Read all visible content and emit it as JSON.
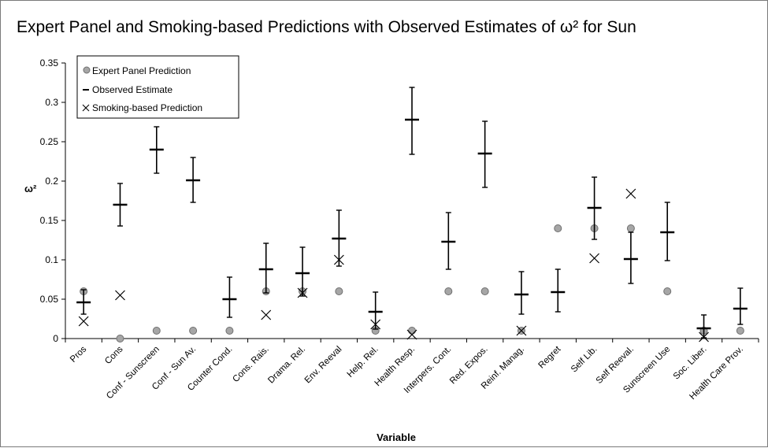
{
  "chart_data": {
    "type": "scatter",
    "title": "Expert Panel and Smoking-based Predictions with Observed Estimates of ω² for Sun",
    "xlabel": "Variable",
    "ylabel": "ω²",
    "ylim": [
      0,
      0.35
    ],
    "yticks": [
      "0",
      "0.05",
      "0.1",
      "0.15",
      "0.2",
      "0.25",
      "0.3",
      "0.35"
    ],
    "grid": false,
    "legend_position": "top-left",
    "categories": [
      "Pros",
      "Cons",
      "Conf - Sunscreen",
      "Conf - Sun Av.",
      "Counter Cond.",
      "Cons. Rais.",
      "Drama. Rel.",
      "Env. Reeval",
      "Help. Rel.",
      "Health Resp.",
      "Interpers. Cont.",
      "Red. Expos.",
      "Reinf. Manag.",
      "Regret",
      "Self Lib.",
      "Self Reeval.",
      "Sunscreen Use",
      "Soc. Liber.",
      "Health Care Prov."
    ],
    "series": [
      {
        "name": "Expert Panel Prediction",
        "marker": "circle",
        "color": "#a6a6a6",
        "values": [
          0.06,
          0,
          0.01,
          0.01,
          0.01,
          0.06,
          0.06,
          0.06,
          0.01,
          0.01,
          0.06,
          0.06,
          0.01,
          0.14,
          0.14,
          0.14,
          0.06,
          0.01,
          0.01
        ]
      },
      {
        "name": "Observed Estimate",
        "marker": "dash",
        "color": "#000000",
        "values": [
          0.046,
          0.17,
          0.24,
          0.201,
          0.05,
          0.088,
          0.083,
          0.127,
          0.034,
          0.278,
          0.123,
          0.235,
          0.056,
          0.059,
          0.166,
          0.101,
          0.135,
          0.013,
          0.038
        ],
        "error_low": [
          0.031,
          0.143,
          0.21,
          0.173,
          0.027,
          0.058,
          0.054,
          0.092,
          0.012,
          0.234,
          0.088,
          0.192,
          0.031,
          0.034,
          0.126,
          0.07,
          0.099,
          0.001,
          0.018
        ],
        "error_high": [
          0.062,
          0.197,
          0.269,
          0.23,
          0.078,
          0.121,
          0.116,
          0.163,
          0.059,
          0.319,
          0.16,
          0.276,
          0.085,
          0.088,
          0.205,
          0.135,
          0.173,
          0.03,
          0.064
        ]
      },
      {
        "name": "Smoking-based Prediction",
        "marker": "x",
        "color": "#000000",
        "values": [
          0.022,
          0.055,
          null,
          null,
          null,
          0.03,
          0.058,
          0.1,
          0.018,
          0.005,
          null,
          null,
          0.01,
          null,
          0.102,
          0.184,
          null,
          0.002,
          null
        ]
      }
    ]
  }
}
